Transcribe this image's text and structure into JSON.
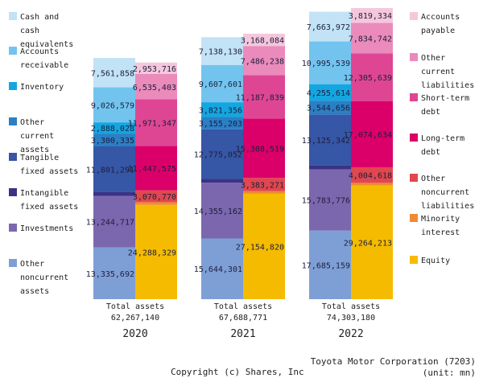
{
  "chart_data": {
    "type": "stacked-bar",
    "title": "Toyota Motor Corporation (7203) balance sheet",
    "company": "Toyota Motor Corporation (7203)",
    "unit_label": "(unit: mn)",
    "copyright": "Copyright (c) Shares, Inc",
    "ylim": [
      0,
      75000000
    ],
    "asset_series": [
      {
        "name": "Other noncurrent assets",
        "label": [
          "Other",
          "noncurrent",
          "assets"
        ],
        "color": "#7e9fd6"
      },
      {
        "name": "Investments",
        "label": [
          "Investments"
        ],
        "color": "#7b67ae"
      },
      {
        "name": "Intangible fixed assets",
        "label": [
          "Intangible",
          "fixed assets"
        ],
        "color": "#3b3286"
      },
      {
        "name": "Tangible fixed assets",
        "label": [
          "Tangible",
          "fixed assets"
        ],
        "color": "#3656a6"
      },
      {
        "name": "Other current assets",
        "label": [
          "Other",
          "current",
          "assets"
        ],
        "color": "#2b7fc4"
      },
      {
        "name": "Inventory",
        "label": [
          "Inventory"
        ],
        "color": "#14a6e0"
      },
      {
        "name": "Accounts receivable",
        "label": [
          "Accounts",
          "receivable"
        ],
        "color": "#72c4ee"
      },
      {
        "name": "Cash and cash equivalents",
        "label": [
          "Cash and",
          "cash",
          "equivalents"
        ],
        "color": "#c2e2f6"
      }
    ],
    "liability_series": [
      {
        "name": "Equity",
        "label": [
          "Equity"
        ],
        "color": "#f5bb00"
      },
      {
        "name": "Minority interest",
        "label": [
          "Minority",
          "interest"
        ],
        "color": "#ef8a34"
      },
      {
        "name": "Other noncurrent liabilities",
        "label": [
          "Other",
          "noncurrent",
          "liabilities"
        ],
        "color": "#e0474f"
      },
      {
        "name": "Long-term debt",
        "label": [
          "Long-term",
          "debt"
        ],
        "color": "#db0069"
      },
      {
        "name": "Short-term debt",
        "label": [
          "Short-term",
          "debt"
        ],
        "color": "#de4694"
      },
      {
        "name": "Other current liabilities",
        "label": [
          "Other",
          "current",
          "liabilities"
        ],
        "color": "#ea8bbb"
      },
      {
        "name": "Accounts payable",
        "label": [
          "Accounts",
          "payable"
        ],
        "color": "#f5c7dd"
      }
    ],
    "years": [
      {
        "year": "2020",
        "total_caption": "Total assets",
        "total": 62267140,
        "total_label": "62,267,140",
        "assets": [
          {
            "series": "Other noncurrent assets",
            "value": 13335692,
            "label": "13,335,692"
          },
          {
            "series": "Investments",
            "value": 13244717,
            "label": "13,244,717"
          },
          {
            "series": "Intangible fixed assets",
            "value": 982000,
            "label": ""
          },
          {
            "series": "Tangible fixed assets",
            "value": 11801291,
            "label": "11,801,291"
          },
          {
            "series": "Other current assets",
            "value": 3300335,
            "label": "3,300,335"
          },
          {
            "series": "Inventory",
            "value": 2888028,
            "label": "2,888,028"
          },
          {
            "series": "Accounts receivable",
            "value": 9026579,
            "label": "9,026,579"
          },
          {
            "series": "Cash and cash equivalents",
            "value": 7561858,
            "label": "7,561,858"
          }
        ],
        "liabilities": [
          {
            "series": "Equity",
            "value": 24288329,
            "label": "24,288,329"
          },
          {
            "series": "Minority interest",
            "value": 700000,
            "label": ""
          },
          {
            "series": "Other noncurrent liabilities",
            "value": 3070770,
            "label": "3,070,770"
          },
          {
            "series": "Long-term debt",
            "value": 11447575,
            "label": "11,447,575"
          },
          {
            "series": "Short-term debt",
            "value": 11971347,
            "label": "11,971,347"
          },
          {
            "series": "Other current liabilities",
            "value": 6535403,
            "label": "6,535,403"
          },
          {
            "series": "Accounts payable",
            "value": 2953716,
            "label": "2,953,716"
          }
        ]
      },
      {
        "year": "2021",
        "total_caption": "Total assets",
        "total": 67688771,
        "total_label": "67,688,771",
        "assets": [
          {
            "series": "Other noncurrent assets",
            "value": 15644301,
            "label": "15,644,301"
          },
          {
            "series": "Investments",
            "value": 14355162,
            "label": "14,355,162"
          },
          {
            "series": "Intangible fixed assets",
            "value": 986000,
            "label": ""
          },
          {
            "series": "Tangible fixed assets",
            "value": 12775052,
            "label": "12,775,052"
          },
          {
            "series": "Other current assets",
            "value": 3155203,
            "label": "3,155,203"
          },
          {
            "series": "Inventory",
            "value": 3821356,
            "label": "3,821,356"
          },
          {
            "series": "Accounts receivable",
            "value": 9607601,
            "label": "9,607,601"
          },
          {
            "series": "Cash and cash equivalents",
            "value": 7138130,
            "label": "7,138,130"
          }
        ],
        "liabilities": [
          {
            "series": "Equity",
            "value": 27154820,
            "label": "27,154,820"
          },
          {
            "series": "Minority interest",
            "value": 700000,
            "label": ""
          },
          {
            "series": "Other noncurrent liabilities",
            "value": 3383271,
            "label": "3,383,271"
          },
          {
            "series": "Long-term debt",
            "value": 15308519,
            "label": "15,308,519"
          },
          {
            "series": "Short-term debt",
            "value": 11187839,
            "label": "11,187,839"
          },
          {
            "series": "Other current liabilities",
            "value": 7486238,
            "label": "7,486,238"
          },
          {
            "series": "Accounts payable",
            "value": 3168084,
            "label": "3,168,084"
          }
        ]
      },
      {
        "year": "2022",
        "total_caption": "Total assets",
        "total": 74303180,
        "total_label": "74,303,180",
        "assets": [
          {
            "series": "Other noncurrent assets",
            "value": 17685159,
            "label": "17,685,159"
          },
          {
            "series": "Investments",
            "value": 15783776,
            "label": "15,783,776"
          },
          {
            "series": "Intangible fixed assets",
            "value": 1000000,
            "label": ""
          },
          {
            "series": "Tangible fixed assets",
            "value": 13125342,
            "label": "13,125,342"
          },
          {
            "series": "Other current assets",
            "value": 3544656,
            "label": "3,544,656"
          },
          {
            "series": "Inventory",
            "value": 4255614,
            "label": "4,255,614"
          },
          {
            "series": "Accounts receivable",
            "value": 10995539,
            "label": "10,995,539"
          },
          {
            "series": "Cash and cash equivalents",
            "value": 7663972,
            "label": "7,663,972"
          }
        ],
        "liabilities": [
          {
            "series": "Equity",
            "value": 29264213,
            "label": "29,264,213"
          },
          {
            "series": "Minority interest",
            "value": 700000,
            "label": ""
          },
          {
            "series": "Other noncurrent liabilities",
            "value": 4004618,
            "label": "4,004,618"
          },
          {
            "series": "Long-term debt",
            "value": 17074634,
            "label": "17,074,634"
          },
          {
            "series": "Short-term debt",
            "value": 12305639,
            "label": "12,305,639"
          },
          {
            "series": "Other current liabilities",
            "value": 7834742,
            "label": "7,834,742"
          },
          {
            "series": "Accounts payable",
            "value": 3819334,
            "label": "3,819,334"
          }
        ]
      }
    ]
  }
}
